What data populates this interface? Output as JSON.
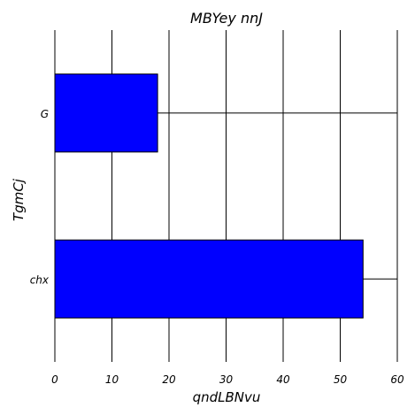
{
  "chart_data": {
    "type": "bar",
    "orientation": "horizontal",
    "title": "MBYey nnJ",
    "xlabel": "qndLBNvu",
    "ylabel": "TgmCj",
    "categories": [
      "chx",
      "G"
    ],
    "values": [
      54,
      18
    ],
    "xlim": [
      0,
      60
    ],
    "xticks": [
      0,
      10,
      20,
      30,
      40,
      50,
      60
    ],
    "grid": true,
    "bar_color": "#0000ff",
    "edge_color": "#000000"
  }
}
